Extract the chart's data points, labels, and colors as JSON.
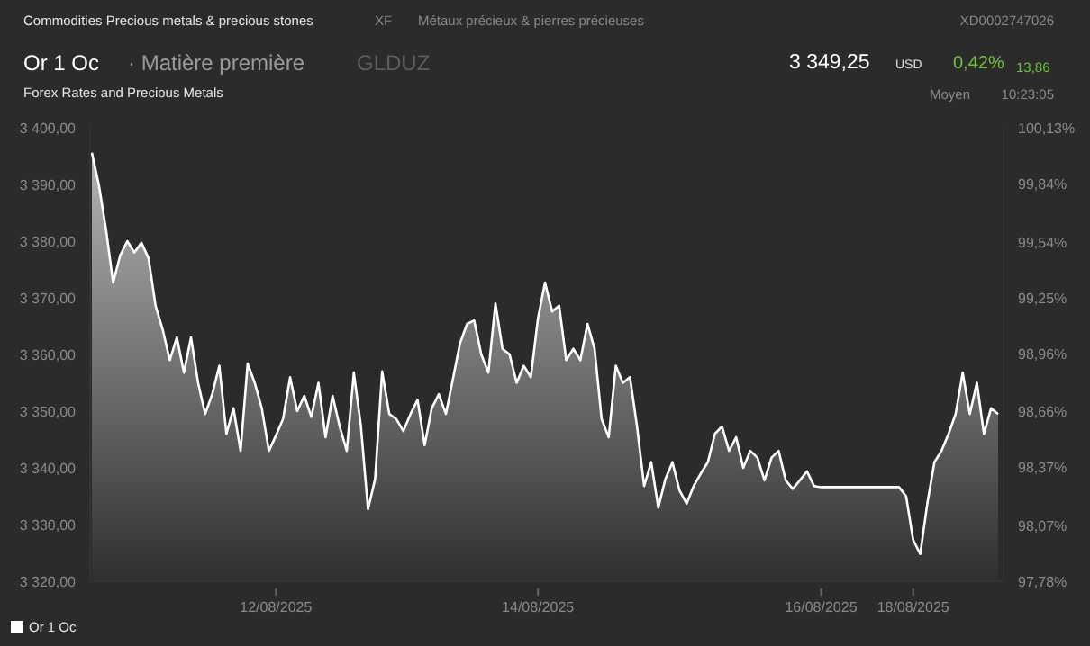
{
  "chart_data": {
    "type": "area",
    "title": "Or 1 Oc",
    "subtitle": "Forex Rates and Precious Metals",
    "annotations": [
      "Commodities Precious metals & precious stones",
      "XF",
      "Métaux précieux & pierres précieuses",
      "XD0002747026",
      "· Matière première",
      "GLDUZ",
      "3 349,25",
      "USD",
      "0,42%",
      "13,86",
      "Moyen",
      "10:23:05"
    ],
    "categories": [
      null,
      null,
      null,
      null,
      null,
      null,
      null,
      null,
      null,
      null,
      null,
      null,
      null,
      null,
      null,
      null,
      null,
      null,
      null,
      null,
      null,
      null,
      null,
      null,
      null,
      null,
      "12/08/2025",
      null,
      null,
      null,
      null,
      null,
      null,
      null,
      null,
      null,
      null,
      null,
      null,
      null,
      null,
      null,
      null,
      null,
      null,
      null,
      null,
      null,
      null,
      null,
      null,
      null,
      null,
      null,
      null,
      null,
      null,
      null,
      null,
      null,
      null,
      null,
      null,
      "14/08/2025",
      null,
      null,
      null,
      null,
      null,
      null,
      null,
      null,
      null,
      null,
      null,
      null,
      null,
      null,
      null,
      null,
      null,
      null,
      null,
      null,
      null,
      null,
      null,
      null,
      null,
      null,
      null,
      null,
      null,
      null,
      null,
      null,
      null,
      null,
      null,
      null,
      null,
      null,
      null,
      "16/08/2025",
      null,
      null,
      null,
      null,
      null,
      null,
      null,
      null,
      null,
      null,
      null,
      null,
      "18/08/2025",
      null,
      null,
      null,
      null,
      null,
      null,
      null,
      null,
      null,
      null,
      null,
      null
    ],
    "series": [
      {
        "name": "Or 1 Oc",
        "color": "#ffffff",
        "values": [
          3395.6,
          3389.8,
          3382,
          3372.7,
          3377.5,
          3380,
          3378,
          3379.7,
          3377,
          3368.6,
          3364.4,
          3359,
          3363,
          3356.8,
          3363,
          3355,
          3349.5,
          3353,
          3358,
          3346,
          3350.5,
          3343,
          3358.4,
          3355,
          3350.5,
          3343,
          3345.7,
          3348.6,
          3356,
          3350,
          3352.7,
          3349,
          3355,
          3345.4,
          3352.7,
          3347.3,
          3343,
          3356.8,
          3347.3,
          3332.7,
          3338,
          3357,
          3349.5,
          3348.6,
          3346.5,
          3349.5,
          3352,
          3344,
          3350.5,
          3353,
          3349.5,
          3355.7,
          3362,
          3365.4,
          3366,
          3360,
          3356.8,
          3369,
          3361,
          3360,
          3355,
          3358,
          3356,
          3366.3,
          3372.7,
          3367.6,
          3368.6,
          3359,
          3361,
          3359,
          3365.4,
          3361,
          3348.6,
          3345.4,
          3358,
          3355,
          3356,
          3347.3,
          3336.8,
          3341,
          3333,
          3338,
          3341,
          3336,
          3333.7,
          3336.8,
          3339,
          3341,
          3346,
          3347.3,
          3343,
          3345.4,
          3340,
          3343,
          3341.8,
          3337.8,
          3341.8,
          3343,
          3337.8,
          3336.3,
          3337.8,
          3339.4,
          3336.8,
          3336.6,
          3336.6,
          3336.6,
          3336.6,
          3336.6,
          3336.6,
          3336.6,
          3336.6,
          3336.6,
          3336.6,
          3336.6,
          3336.6,
          3335,
          3327.3,
          3324.8,
          3333.7,
          3341,
          3343,
          3346,
          3349.5,
          3356.8,
          3349.5,
          3355,
          3346,
          3350.5,
          3349.5
        ]
      }
    ],
    "ylim": [
      3320,
      3400
    ],
    "yticks": [
      {
        "value": 3320,
        "label": "3 320,00"
      },
      {
        "value": 3330,
        "label": "3 330,00"
      },
      {
        "value": 3340,
        "label": "3 340,00"
      },
      {
        "value": 3350,
        "label": "3 350,00"
      },
      {
        "value": 3360,
        "label": "3 360,00"
      },
      {
        "value": 3370,
        "label": "3 370,00"
      },
      {
        "value": 3380,
        "label": "3 380,00"
      },
      {
        "value": 3390,
        "label": "3 390,00"
      },
      {
        "value": 3400,
        "label": "3 400,00"
      }
    ],
    "y2lim": [
      97.78,
      100.13
    ],
    "y2ticks": [
      {
        "value": 97.78,
        "label": "97,78%"
      },
      {
        "value": 98.07,
        "label": "98,07%"
      },
      {
        "value": 98.37,
        "label": "98,37%"
      },
      {
        "value": 98.66,
        "label": "98,66%"
      },
      {
        "value": 98.96,
        "label": "98,96%"
      },
      {
        "value": 99.25,
        "label": "99,25%"
      },
      {
        "value": 99.54,
        "label": "99,54%"
      },
      {
        "value": 99.84,
        "label": "99,84%"
      },
      {
        "value": 100.13,
        "label": "100,13%"
      }
    ],
    "grid": false,
    "legend": "bottom left"
  }
}
